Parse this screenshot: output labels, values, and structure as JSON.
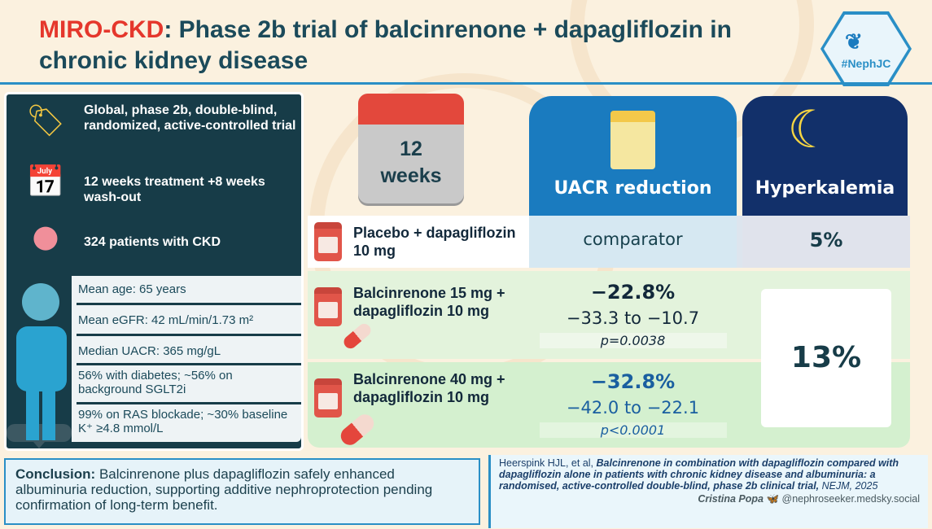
{
  "header": {
    "title_highlight": "MIRO-CKD",
    "title_rest": ": Phase 2b trial of balcinrenone + dapagliflozin in chronic kidney disease",
    "logo_text": "#NephJC"
  },
  "design": {
    "items": [
      {
        "icon": "trial-tag-icon",
        "text": "Global, phase 2b, double-blind, randomized, active-controlled trial"
      },
      {
        "icon": "calendar-clock-icon",
        "text": "12 weeks treatment +8 weeks wash-out"
      },
      {
        "icon": "kidney-icon",
        "text": "324 patients with CKD"
      }
    ]
  },
  "baseline": [
    "Mean age: 65 years",
    "Mean eGFR: 42 mL/min/1.73 m²",
    "Median UACR: 365 mg/gL",
    "56% with diabetes; ~56% on background SGLT2i",
    "99% on RAS blockade; ~30% baseline K⁺ ≥4.8 mmol/L"
  ],
  "duration": {
    "number": "12",
    "unit": "weeks"
  },
  "columns": {
    "uacr": "UACR reduction",
    "hyperkalemia": "Hyperkalemia"
  },
  "arms": [
    {
      "name": "Placebo + dapagliflozin 10 mg",
      "uacr": "comparator",
      "hyperkalemia": "5%"
    },
    {
      "name": "Balcinrenone 15 mg + dapagliflozin 10 mg",
      "uacr": "−22.8%",
      "ci": "−33.3 to −10.7",
      "p": "p=0.0038"
    },
    {
      "name": "Balcinrenone 40 mg + dapagliflozin 10 mg",
      "uacr": "−32.8%",
      "ci": "−42.0 to −22.1",
      "p": "p<0.0001"
    }
  ],
  "hyperkalemia_balcinrenone": "13%",
  "conclusion": {
    "label": "Conclusion:",
    "text": " Balcinrenone plus dapagliflozin safely enhanced albuminuria reduction, supporting additive nephroprotection pending confirmation of long-term benefit."
  },
  "citation": {
    "authors": "Heerspink HJL, et al, ",
    "title": "Balcinrenone in combination with dapagliflozin compared with dapagliflozin alone in patients with chronic kidney disease and albuminuria: a randomised, active-controlled double-blind, phase 2b clinical trial,",
    "journal": " NEJM, 2025"
  },
  "credit": {
    "author": "Cristina Popa",
    "handle": "@nephroseeker.medsky.social"
  },
  "colors": {
    "accent_red": "#e5372c",
    "teal": "#173c48",
    "blue": "#1a7bbf",
    "navy": "#12306a"
  }
}
